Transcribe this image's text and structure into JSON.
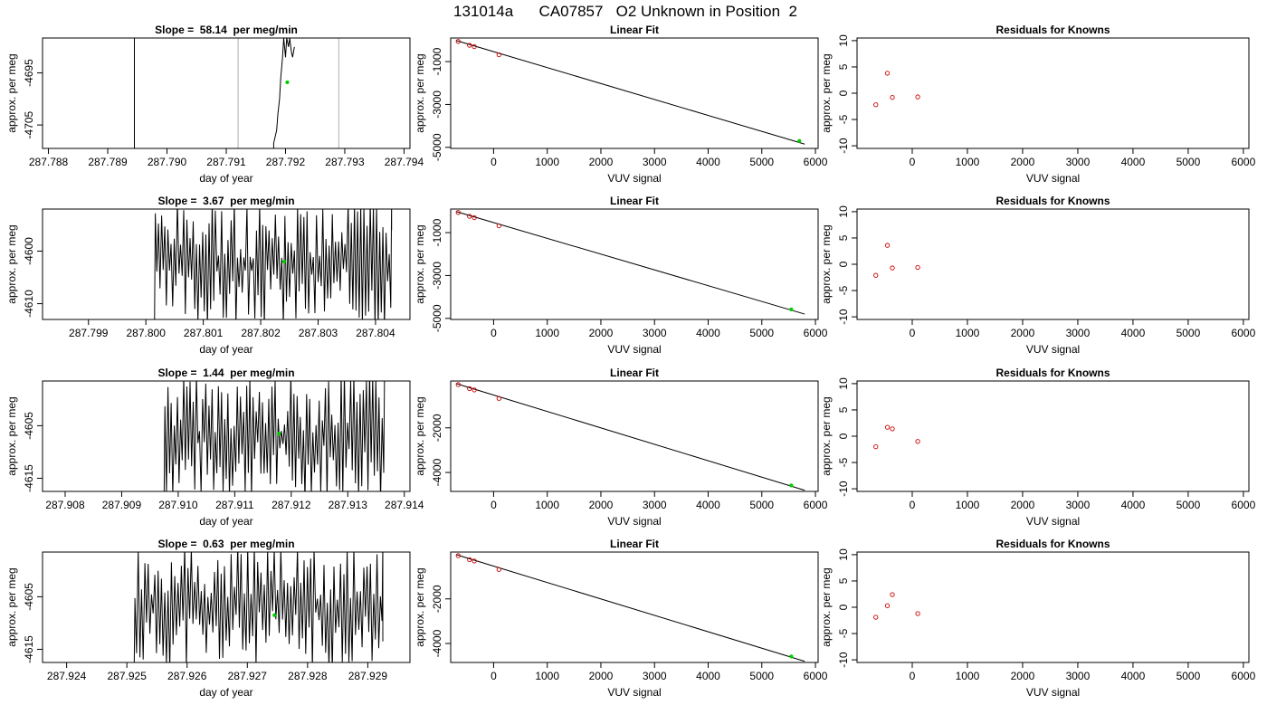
{
  "figure": {
    "title": "131014a      CA07857   O2 Unknown in Position  2"
  },
  "colors": {
    "trace": "#000000",
    "unknown_point": "#00cc00",
    "known_points": "#cc0000",
    "gray_line": "#bbbbbb"
  },
  "chart_data": [
    {
      "type": "line",
      "title": "Slope =  58.14  per meg/min",
      "xlabel": "day of year",
      "ylabel": "approx. per meg",
      "xlim": [
        287.7879,
        287.7941
      ],
      "ylim": [
        -4709.5,
        -4688.3
      ],
      "xticks": [
        "287.788",
        "287.789",
        "287.790",
        "287.791",
        "287.792",
        "287.793",
        "287.794"
      ],
      "xtick_values": [
        287.788,
        287.789,
        287.79,
        287.791,
        287.792,
        287.793,
        287.794
      ],
      "yticks": [
        "-4705",
        "-4695"
      ],
      "ytick_values": [
        -4705,
        -4695
      ],
      "grid_lines_x": [
        287.7912,
        287.7929
      ],
      "series": [
        {
          "x": [
            287.78945,
            287.78945,
            287.78945,
            287.7918,
            287.7918,
            287.79185,
            287.79187,
            287.7919,
            287.79192,
            287.79195,
            287.79197,
            287.792,
            287.79202,
            287.79205,
            287.79207,
            287.7921,
            287.79212,
            287.79215
          ],
          "y": [
            -4709.5,
            -4688.3,
            -4709.5,
            -4709.5,
            -4708.5,
            -4706,
            -4703,
            -4700,
            -4696,
            -4692,
            -4688.3,
            -4692,
            -4688.3,
            -4690,
            -4688.3,
            -4691,
            -4692,
            -4690
          ]
        }
      ],
      "highlight": {
        "x": 287.79203,
        "y": -4696.8
      }
    },
    {
      "type": "scatter",
      "title": "Linear Fit",
      "xlabel": "VUV signal",
      "ylabel": "approx. per meg",
      "xlim": [
        -800,
        6050
      ],
      "ylim": [
        -5050,
        100
      ],
      "xticks": [
        "0",
        "1000",
        "2000",
        "3000",
        "4000",
        "5000",
        "6000"
      ],
      "xtick_values": [
        0,
        1000,
        2000,
        3000,
        4000,
        5000,
        6000
      ],
      "yticks": [
        "-5000",
        "-3000",
        "-1000"
      ],
      "ytick_values": [
        -5000,
        -3000,
        -1000
      ],
      "known_points": [
        [
          -660,
          -60
        ],
        [
          -450,
          -240
        ],
        [
          -360,
          -300
        ],
        [
          100,
          -680
        ]
      ],
      "fit_line": [
        [
          -700,
          -15
        ],
        [
          5800,
          -4850
        ]
      ],
      "highlight": {
        "x": 5700,
        "y": -4700
      }
    },
    {
      "type": "scatter",
      "title": "Residuals for Knowns",
      "xlabel": "VUV signal",
      "ylabel": "approx. per meg",
      "xlim": [
        -1000,
        6100
      ],
      "ylim": [
        -10.5,
        10.5
      ],
      "xticks": [
        "0",
        "1000",
        "2000",
        "3000",
        "4000",
        "5000",
        "6000"
      ],
      "xtick_values": [
        0,
        1000,
        2000,
        3000,
        4000,
        5000,
        6000
      ],
      "yticks": [
        "-10",
        "-5",
        "0",
        "5",
        "10"
      ],
      "ytick_values": [
        -10,
        -5,
        0,
        5,
        10
      ],
      "known_points": [
        [
          -660,
          -2.2
        ],
        [
          -450,
          3.8
        ],
        [
          -360,
          -0.8
        ],
        [
          100,
          -0.7
        ]
      ]
    },
    {
      "type": "line",
      "title": "Slope =  3.67  per meg/min",
      "xlabel": "day of year",
      "ylabel": "approx. per meg",
      "xlim": [
        287.7982,
        287.8046
      ],
      "ylim": [
        -4613,
        -4592
      ],
      "xticks": [
        "287.799",
        "287.800",
        "287.801",
        "287.802",
        "287.803",
        "287.804"
      ],
      "xtick_values": [
        287.799,
        287.8,
        287.801,
        287.802,
        287.803,
        287.804
      ],
      "yticks": [
        "-4610",
        "-4600"
      ],
      "ytick_values": [
        -4610,
        -4600
      ],
      "osc": {
        "start": 287.80015,
        "end": 287.80428,
        "n": 150,
        "seed": 3,
        "final": -4596
      },
      "highlight": {
        "x": 287.80241,
        "y": -4602
      }
    },
    {
      "type": "scatter",
      "title": "Linear Fit",
      "xlabel": "VUV signal",
      "ylabel": "approx. per meg",
      "xlim": [
        -800,
        6050
      ],
      "ylim": [
        -5050,
        100
      ],
      "xticks": [
        "0",
        "1000",
        "2000",
        "3000",
        "4000",
        "5000",
        "6000"
      ],
      "xtick_values": [
        0,
        1000,
        2000,
        3000,
        4000,
        5000,
        6000
      ],
      "yticks": [
        "-5000",
        "-3000",
        "-1000"
      ],
      "ytick_values": [
        -5000,
        -3000,
        -1000
      ],
      "known_points": [
        [
          -660,
          -60
        ],
        [
          -450,
          -240
        ],
        [
          -360,
          -300
        ],
        [
          100,
          -680
        ]
      ],
      "fit_line": [
        [
          -700,
          -15
        ],
        [
          5800,
          -4800
        ]
      ],
      "highlight": {
        "x": 5550,
        "y": -4580
      }
    },
    {
      "type": "scatter",
      "title": "Residuals for Knowns",
      "xlabel": "VUV signal",
      "ylabel": "approx. per meg",
      "xlim": [
        -1000,
        6100
      ],
      "ylim": [
        -10.5,
        10.5
      ],
      "xticks": [
        "0",
        "1000",
        "2000",
        "3000",
        "4000",
        "5000",
        "6000"
      ],
      "xtick_values": [
        0,
        1000,
        2000,
        3000,
        4000,
        5000,
        6000
      ],
      "yticks": [
        "-10",
        "-5",
        "0",
        "5",
        "10"
      ],
      "ytick_values": [
        -10,
        -5,
        0,
        5,
        10
      ],
      "known_points": [
        [
          -660,
          -2.1
        ],
        [
          -450,
          3.6
        ],
        [
          -360,
          -0.7
        ],
        [
          100,
          -0.6
        ]
      ]
    },
    {
      "type": "line",
      "title": "Slope =  1.44  per meg/min",
      "xlabel": "day of year",
      "ylabel": "approx. per meg",
      "xlim": [
        287.9076,
        287.9141
      ],
      "ylim": [
        -4617.5,
        -4596.5
      ],
      "xticks": [
        "287.908",
        "287.909",
        "287.910",
        "287.911",
        "287.912",
        "287.913",
        "287.914"
      ],
      "xtick_values": [
        287.908,
        287.909,
        287.91,
        287.911,
        287.912,
        287.913,
        287.914
      ],
      "yticks": [
        "-4615",
        "-4605"
      ],
      "ytick_values": [
        -4615,
        -4605
      ],
      "osc": {
        "start": 287.90975,
        "end": 287.91365,
        "n": 140,
        "seed": 7,
        "final": -4596.5
      },
      "highlight": {
        "x": 287.91178,
        "y": -4606.5
      }
    },
    {
      "type": "scatter",
      "title": "Linear Fit",
      "xlabel": "VUV signal",
      "ylabel": "approx. per meg",
      "xlim": [
        -800,
        6050
      ],
      "ylim": [
        -4850,
        100
      ],
      "xticks": [
        "0",
        "1000",
        "2000",
        "3000",
        "4000",
        "5000",
        "6000"
      ],
      "xtick_values": [
        0,
        1000,
        2000,
        3000,
        4000,
        5000,
        6000
      ],
      "yticks": [
        "-4000",
        "-2000"
      ],
      "ytick_values": [
        -4000,
        -2000
      ],
      "known_points": [
        [
          -660,
          -60
        ],
        [
          -450,
          -240
        ],
        [
          -360,
          -300
        ],
        [
          100,
          -680
        ]
      ],
      "fit_line": [
        [
          -700,
          -15
        ],
        [
          5800,
          -4800
        ]
      ],
      "highlight": {
        "x": 5550,
        "y": -4580
      }
    },
    {
      "type": "scatter",
      "title": "Residuals for Knowns",
      "xlabel": "VUV signal",
      "ylabel": "approx. per meg",
      "xlim": [
        -1000,
        6100
      ],
      "ylim": [
        -10.5,
        10.5
      ],
      "xticks": [
        "0",
        "1000",
        "2000",
        "3000",
        "4000",
        "5000",
        "6000"
      ],
      "xtick_values": [
        0,
        1000,
        2000,
        3000,
        4000,
        5000,
        6000
      ],
      "yticks": [
        "-10",
        "-5",
        "0",
        "5",
        "10"
      ],
      "ytick_values": [
        -10,
        -5,
        0,
        5,
        10
      ],
      "known_points": [
        [
          -660,
          -2.0
        ],
        [
          -450,
          1.7
        ],
        [
          -360,
          1.4
        ],
        [
          100,
          -1.0
        ]
      ]
    },
    {
      "type": "line",
      "title": "Slope =  0.63  per meg/min",
      "xlabel": "day of year",
      "ylabel": "approx. per meg",
      "xlim": [
        287.9236,
        287.9297
      ],
      "ylim": [
        -4617.5,
        -4596.5
      ],
      "xticks": [
        "287.924",
        "287.925",
        "287.926",
        "287.927",
        "287.928",
        "287.929"
      ],
      "xtick_values": [
        287.924,
        287.925,
        287.926,
        287.927,
        287.928,
        287.929
      ],
      "yticks": [
        "-4615",
        "-4605"
      ],
      "ytick_values": [
        -4615,
        -4605
      ],
      "osc": {
        "start": 287.92512,
        "end": 287.92925,
        "n": 150,
        "seed": 11,
        "final": -4613.5
      },
      "highlight": {
        "x": 287.92745,
        "y": -4608.5
      }
    },
    {
      "type": "scatter",
      "title": "Linear Fit",
      "xlabel": "VUV signal",
      "ylabel": "approx. per meg",
      "xlim": [
        -800,
        6050
      ],
      "ylim": [
        -4850,
        100
      ],
      "xticks": [
        "0",
        "1000",
        "2000",
        "3000",
        "4000",
        "5000",
        "6000"
      ],
      "xtick_values": [
        0,
        1000,
        2000,
        3000,
        4000,
        5000,
        6000
      ],
      "yticks": [
        "-4000",
        "-2000"
      ],
      "ytick_values": [
        -4000,
        -2000
      ],
      "known_points": [
        [
          -660,
          -60
        ],
        [
          -450,
          -240
        ],
        [
          -360,
          -300
        ],
        [
          100,
          -680
        ]
      ],
      "fit_line": [
        [
          -700,
          -15
        ],
        [
          5800,
          -4800
        ]
      ],
      "highlight": {
        "x": 5550,
        "y": -4580
      }
    },
    {
      "type": "scatter",
      "title": "Residuals for Knowns",
      "xlabel": "VUV signal",
      "ylabel": "approx. per meg",
      "xlim": [
        -1000,
        6100
      ],
      "ylim": [
        -10.5,
        10.5
      ],
      "xticks": [
        "0",
        "1000",
        "2000",
        "3000",
        "4000",
        "5000",
        "6000"
      ],
      "xtick_values": [
        0,
        1000,
        2000,
        3000,
        4000,
        5000,
        6000
      ],
      "yticks": [
        "-10",
        "-5",
        "0",
        "5",
        "10"
      ],
      "ytick_values": [
        -10,
        -5,
        0,
        5,
        10
      ],
      "known_points": [
        [
          -660,
          -1.9
        ],
        [
          -450,
          0.3
        ],
        [
          -360,
          2.4
        ],
        [
          100,
          -1.2
        ]
      ]
    }
  ]
}
